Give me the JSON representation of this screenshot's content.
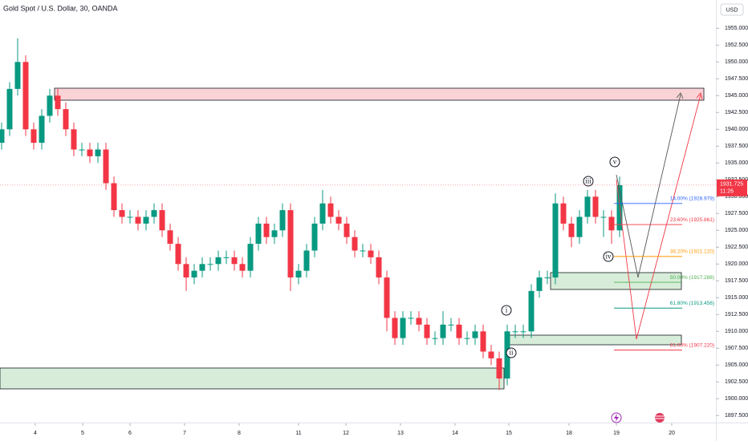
{
  "chart_data": {
    "type": "candlestick",
    "title": "Gold Spot / U.S. Dollar, 30, OANDA",
    "currency_button": "USD",
    "up_color": "#089981",
    "down_color": "#f23645",
    "open": [
      1938,
      1940,
      1946,
      1950,
      1940,
      1938,
      1942,
      1945,
      1943,
      1940,
      1937,
      1937,
      1936,
      1937,
      1932,
      1928,
      1927,
      1927,
      1926,
      1927,
      1928,
      1925,
      1923,
      1920,
      1918,
      1919,
      1920,
      1920,
      1921,
      1921,
      1920,
      1919,
      1923,
      1926,
      1924,
      1925,
      1928,
      1918,
      1919,
      1922,
      1926,
      1929,
      1927,
      1926,
      1924,
      1922,
      1922,
      1921,
      1918,
      1912,
      1909,
      1912,
      1912,
      1911,
      1909,
      1909,
      1911,
      1911,
      1909,
      1909,
      1910,
      1907,
      1906,
      1903,
      1910,
      1910,
      1910,
      1916,
      1918,
      1918,
      1929,
      1926,
      1924,
      1927,
      1930,
      1927,
      1927,
      1925
    ],
    "high": [
      1941,
      1947,
      1953.5,
      1951,
      1941,
      1943,
      1946,
      1946,
      1944,
      1941,
      1938,
      1938,
      1938,
      1938,
      1933,
      1929,
      1928,
      1928,
      1928,
      1929,
      1929,
      1926,
      1924,
      1921,
      1920,
      1921,
      1921,
      1922,
      1922,
      1922,
      1921,
      1924,
      1927,
      1927,
      1926,
      1929,
      1929,
      1920,
      1923,
      1927,
      1931,
      1930,
      1928,
      1927,
      1925,
      1923,
      1923,
      1922,
      1919,
      1913,
      1913,
      1913,
      1913,
      1912,
      1910,
      1913,
      1912,
      1912,
      1910,
      1911,
      1911,
      1908,
      1907,
      1911,
      1911,
      1911,
      1917,
      1919,
      1919,
      1930.5,
      1930,
      1927,
      1928,
      1931,
      1931,
      1928,
      1928,
      1933
    ],
    "low": [
      1937,
      1939,
      1945,
      1939,
      1937,
      1937,
      1941,
      1942,
      1939,
      1936,
      1936,
      1935,
      1935,
      1931,
      1927,
      1926,
      1926,
      1925,
      1925,
      1926,
      1924,
      1922,
      1919,
      1916,
      1917,
      1918,
      1919,
      1919,
      1920,
      1919,
      1918,
      1918,
      1922,
      1923,
      1923,
      1924,
      1916,
      1917,
      1918,
      1921,
      1925,
      1926,
      1925,
      1923,
      1921,
      1921,
      1920,
      1917,
      1910,
      1908,
      1908,
      1911,
      1910,
      1908,
      1908,
      1908,
      1910,
      1908,
      1908,
      1908,
      1906,
      1905,
      1901.3,
      1902,
      1909,
      1909,
      1909,
      1915,
      1917,
      1917,
      1925,
      1922.5,
      1923,
      1926,
      1926,
      1924,
      1923,
      1924
    ],
    "close": [
      1940,
      1946,
      1950,
      1940,
      1938,
      1942,
      1945,
      1943,
      1940,
      1937,
      1937,
      1936,
      1937,
      1932,
      1928,
      1927,
      1927,
      1926,
      1927,
      1928,
      1925,
      1923,
      1920,
      1918,
      1919,
      1920,
      1920,
      1921,
      1921,
      1920,
      1919,
      1923,
      1926,
      1924,
      1925,
      1928,
      1918,
      1919,
      1922,
      1926,
      1929,
      1927,
      1926,
      1924,
      1922,
      1922,
      1921,
      1918,
      1912,
      1909,
      1912,
      1912,
      1911,
      1909,
      1909,
      1911,
      1911,
      1909,
      1909,
      1910,
      1907,
      1906,
      1903,
      1910,
      1910,
      1910,
      1916,
      1918,
      1918,
      1929,
      1926,
      1924,
      1927,
      1930,
      1927,
      1927,
      1925,
      1931.7
    ],
    "xlim": [
      -0.2,
      89
    ],
    "xticks": [
      {
        "value": 4.2,
        "label": "4"
      },
      {
        "value": 10.1,
        "label": "5"
      },
      {
        "value": 16,
        "label": "6"
      },
      {
        "value": 22.8,
        "label": "7"
      },
      {
        "value": 29.6,
        "label": "8"
      },
      {
        "value": 37,
        "label": "11"
      },
      {
        "value": 42.9,
        "label": "12"
      },
      {
        "value": 49.7,
        "label": "13"
      },
      {
        "value": 56.5,
        "label": "14"
      },
      {
        "value": 63.2,
        "label": "15"
      },
      {
        "value": 70.7,
        "label": "18"
      },
      {
        "value": 76.6,
        "label": "19"
      },
      {
        "value": 83.5,
        "label": "20"
      }
    ],
    "ylim": [
      1896.7,
      1959.2
    ],
    "yticks": [
      {
        "value": 1897.5,
        "label": "1897.500"
      },
      {
        "value": 1900,
        "label": "1900.000"
      },
      {
        "value": 1902.5,
        "label": "1902.500"
      },
      {
        "value": 1905,
        "label": "1905.000"
      },
      {
        "value": 1907.5,
        "label": "1907.500"
      },
      {
        "value": 1910,
        "label": "1910.000"
      },
      {
        "value": 1912.5,
        "label": "1912.500"
      },
      {
        "value": 1915,
        "label": "1915.000"
      },
      {
        "value": 1917.5,
        "label": "1917.500"
      },
      {
        "value": 1920,
        "label": "1920.000"
      },
      {
        "value": 1922.5,
        "label": "1922.500"
      },
      {
        "value": 1925,
        "label": "1925.000"
      },
      {
        "value": 1927.5,
        "label": "1927.500"
      },
      {
        "value": 1930,
        "label": "1930.000"
      },
      {
        "value": 1932.5,
        "label": "1932.500"
      },
      {
        "value": 1935,
        "label": "1935.000"
      },
      {
        "value": 1937.5,
        "label": "1937.500"
      },
      {
        "value": 1940,
        "label": "1940.000"
      },
      {
        "value": 1942.5,
        "label": "1942.500"
      },
      {
        "value": 1945,
        "label": "1945.000"
      },
      {
        "value": 1947.5,
        "label": "1947.500"
      },
      {
        "value": 1950,
        "label": "1950.000"
      },
      {
        "value": 1952.5,
        "label": "1952.500"
      },
      {
        "value": 1955,
        "label": "1955.000"
      }
    ],
    "grid": false,
    "last_price": 1931.725,
    "countdown": "11:26",
    "fib_levels": [
      {
        "value": 1928.979,
        "label": "14.00% (1928.979)",
        "color": "#2962ff"
      },
      {
        "value": 1925.861,
        "label": "23.60% (1925.861)",
        "color": "#f23645"
      },
      {
        "value": 1921.12,
        "label": "38.20% (1921.120)",
        "color": "#ff9800"
      },
      {
        "value": 1917.288,
        "label": "50.00% (1917.288)",
        "color": "#4caf50"
      },
      {
        "value": 1913.456,
        "label": "61.80% (1913.456)",
        "color": "#089981"
      },
      {
        "value": 1907.22,
        "label": "81.00% (1907.220)",
        "color": "#f23645"
      }
    ],
    "waves": [
      "i",
      "ii",
      "iii",
      "iv",
      "v"
    ]
  }
}
